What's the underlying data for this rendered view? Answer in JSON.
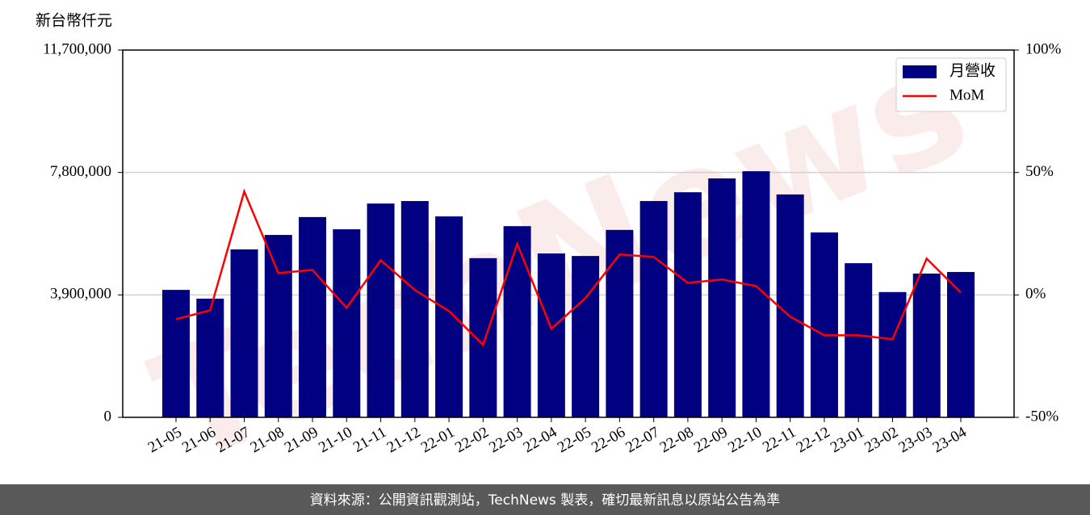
{
  "chart_data": {
    "type": "bar-line",
    "y_label": "新台幣仟元",
    "watermark": "TechNews",
    "footer": "資料來源：公開資訊觀測站，TechNews 製表，確切最新訊息以原站公告為準",
    "categories": [
      "21-05",
      "21-06",
      "21-07",
      "21-08",
      "21-09",
      "21-10",
      "21-11",
      "21-12",
      "22-01",
      "22-02",
      "22-03",
      "22-04",
      "22-05",
      "22-06",
      "22-07",
      "22-08",
      "22-09",
      "22-10",
      "22-11",
      "22-12",
      "23-01",
      "23-02",
      "23-03",
      "23-04"
    ],
    "series": [
      {
        "name": "月營收",
        "type": "bar",
        "color": "#000080",
        "values": [
          4060000,
          3780000,
          5350000,
          5810000,
          6380000,
          5990000,
          6810000,
          6890000,
          6400000,
          5070000,
          6090000,
          5220000,
          5140000,
          5970000,
          6890000,
          7170000,
          7610000,
          7840000,
          7100000,
          5890000,
          4910000,
          3990000,
          4580000,
          4630000
        ]
      },
      {
        "name": "MoM",
        "type": "line",
        "axis": "y2",
        "color": "#ff0000",
        "values": [
          -9.9,
          -6.3,
          42.2,
          8.9,
          10.2,
          -5.3,
          14.2,
          2.0,
          -6.6,
          -20.4,
          20.8,
          -13.8,
          -1.3,
          16.5,
          15.5,
          4.9,
          6.3,
          3.6,
          -8.9,
          -16.5,
          -16.5,
          -18.1,
          14.8,
          1.0
        ]
      }
    ],
    "ylim": [
      0,
      11700000
    ],
    "yticks": [
      0,
      {
        "value": 3900000,
        "label": "3,900,000"
      },
      {
        "value": 7800000,
        "label": "7,800,000"
      },
      {
        "value": 11700000,
        "label": "11,700,000"
      }
    ],
    "y2lim": [
      -50,
      100
    ],
    "y2ticks": [
      {
        "value": -50,
        "label": "-50%"
      },
      {
        "value": 0,
        "label": "0%"
      },
      {
        "value": 50,
        "label": "50%"
      },
      {
        "value": 100,
        "label": "100%"
      }
    ],
    "grid": true,
    "legend": "upper right"
  }
}
